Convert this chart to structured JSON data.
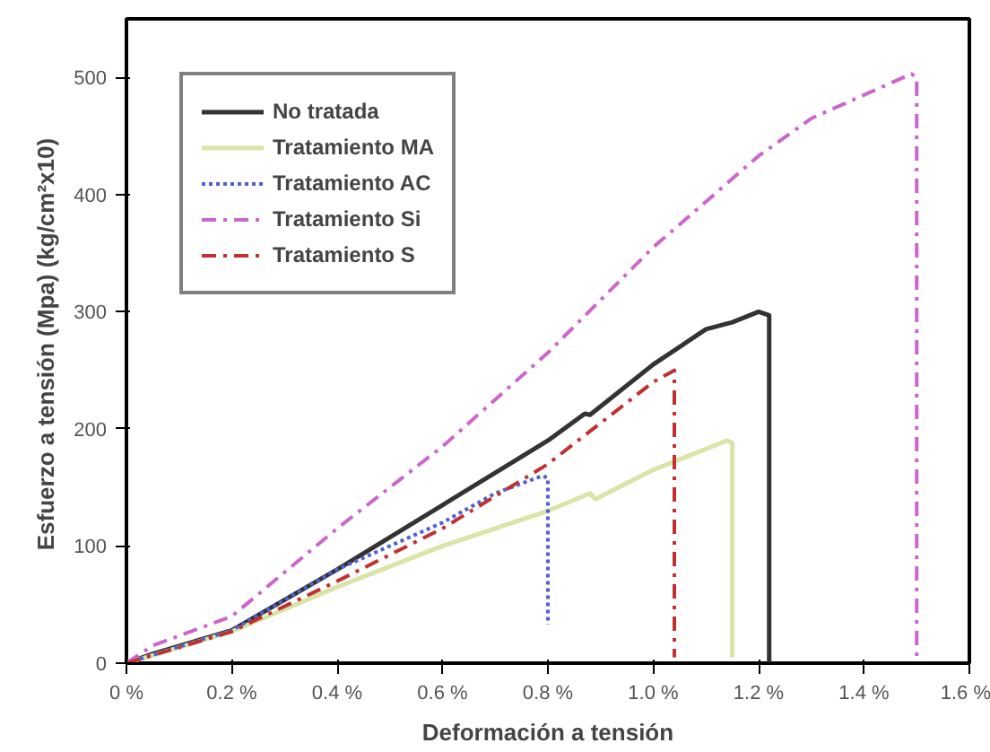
{
  "chart_data": {
    "type": "line",
    "xlabel": "Deformación a tensión",
    "ylabel": "Esfuerzo a tensión  (Mpa) (kg/cm²x10)",
    "xlim": [
      0,
      1.6
    ],
    "ylim": [
      0,
      550
    ],
    "xticks": [
      {
        "value": 0,
        "label": "0 %"
      },
      {
        "value": 0.2,
        "label": "0.2 %"
      },
      {
        "value": 0.4,
        "label": "0.4 %"
      },
      {
        "value": 0.6,
        "label": "0.6 %"
      },
      {
        "value": 0.8,
        "label": "0.8 %"
      },
      {
        "value": 1.0,
        "label": "1.0 %"
      },
      {
        "value": 1.2,
        "label": "1.2 %"
      },
      {
        "value": 1.4,
        "label": "1.4 %"
      },
      {
        "value": 1.6,
        "label": "1.6 %"
      }
    ],
    "yticks": [
      0,
      100,
      200,
      300,
      400,
      500
    ],
    "grid": false,
    "legend": "top left",
    "marker": "none",
    "series": [
      {
        "name": "No tratada",
        "color": "#333333",
        "line_style": "solid",
        "x": [
          0,
          0.05,
          0.2,
          0.4,
          0.6,
          0.8,
          0.87,
          0.88,
          1.0,
          1.1,
          1.15,
          1.2,
          1.22,
          1.22
        ],
        "values": [
          0,
          8,
          28,
          80,
          135,
          190,
          213,
          212,
          255,
          285,
          291,
          300,
          297,
          0
        ]
      },
      {
        "name": "Tratamiento MA",
        "color": "#d8e4a8",
        "line_style": "solid",
        "x": [
          0,
          0.2,
          0.4,
          0.6,
          0.8,
          0.88,
          0.89,
          1.0,
          1.14,
          1.15,
          1.15
        ],
        "values": [
          0,
          27,
          65,
          100,
          130,
          145,
          140,
          165,
          190,
          188,
          5
        ]
      },
      {
        "name": "Tratamiento AC",
        "color": "#5060d0",
        "line_style": "dotted",
        "x": [
          0,
          0.2,
          0.4,
          0.6,
          0.7,
          0.79,
          0.8,
          0.8
        ],
        "values": [
          0,
          28,
          80,
          120,
          145,
          160,
          158,
          33
        ]
      },
      {
        "name": "Tratamiento Si",
        "color": "#cc66cc",
        "line_style": "dashed",
        "x": [
          0,
          0.05,
          0.2,
          0.4,
          0.6,
          0.8,
          1.0,
          1.2,
          1.3,
          1.4,
          1.49,
          1.5,
          1.5
        ],
        "values": [
          0,
          15,
          40,
          115,
          185,
          265,
          355,
          433,
          465,
          485,
          503,
          500,
          0
        ]
      },
      {
        "name": "Tratamiento S",
        "color": "#c03030",
        "line_style": "dashed",
        "x": [
          0,
          0.2,
          0.4,
          0.6,
          0.8,
          1.0,
          1.04,
          1.04
        ],
        "values": [
          0,
          27,
          70,
          115,
          170,
          240,
          250,
          5
        ]
      }
    ]
  }
}
